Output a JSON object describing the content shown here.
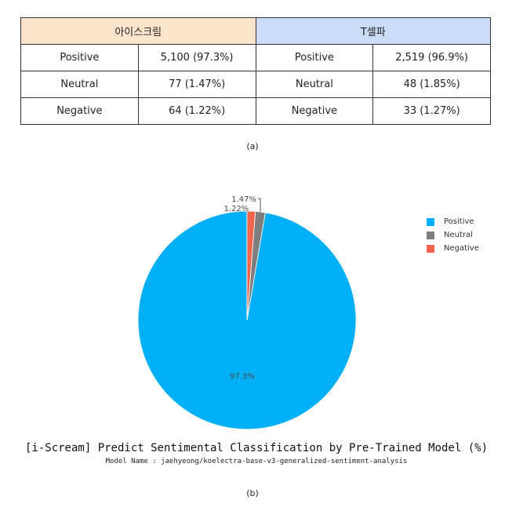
{
  "table": {
    "headers": [
      "아이스크림",
      "T셀파"
    ],
    "rows": [
      [
        "Positive",
        "5,100 (97.3%)",
        "Positive",
        "2,519 (96.9%)"
      ],
      [
        "Neutral",
        "77 (1.47%)",
        "Neutral",
        "48 (1.85%)"
      ],
      [
        "Negative",
        "64 (1.22%)",
        "Negative",
        "33 (1.27%)"
      ]
    ],
    "header_colors": [
      "#fce4cc",
      "#cadcf6"
    ]
  },
  "captions": {
    "a": "(a)",
    "b": "(b)"
  },
  "chart_data": {
    "type": "pie",
    "title": "[i-Scream] Predict Sentimental Classification by Pre-Trained Model (%)",
    "subtitle": "Model Name : jaehyeong/koelectra-base-v3-generalized-sentiment-analysis",
    "slices": [
      {
        "name": "Positive",
        "value": 97.3,
        "label": "97.3%",
        "color": "#00b0f6"
      },
      {
        "name": "Neutral",
        "value": 1.47,
        "label": "1.47%",
        "color": "#7f7f7f"
      },
      {
        "name": "Negative",
        "value": 1.22,
        "label": "1.22%",
        "color": "#f0644c"
      }
    ],
    "legend_position": "top-right"
  }
}
